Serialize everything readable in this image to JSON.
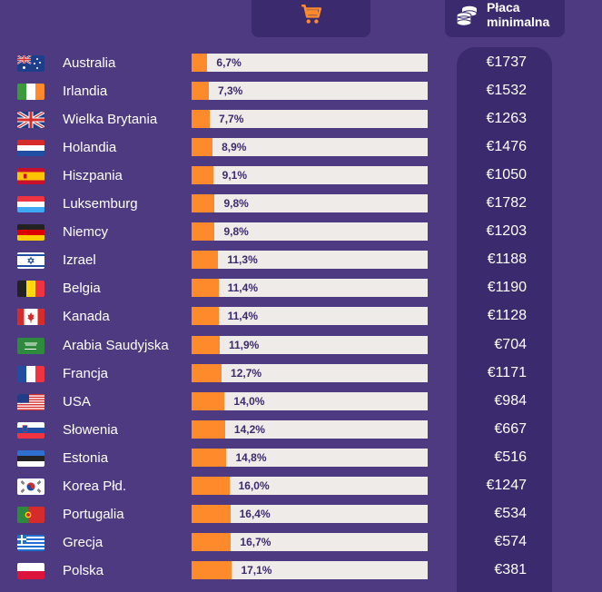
{
  "header": {
    "cart_icon": "shopping-cart-icon",
    "wage_icon": "coins-stack-icon",
    "wage_title_line1": "Płaca",
    "wage_title_line2": "minimalna"
  },
  "colors": {
    "background": "#4e3a80",
    "panel": "#3b2a6e",
    "bar_fill": "#ff8a2b",
    "bar_track": "#efebe8"
  },
  "chart_data": {
    "type": "bar",
    "orientation": "horizontal",
    "xlim": [
      0,
      100
    ],
    "categories": [
      "Australia",
      "Irlandia",
      "Wielka Brytania",
      "Holandia",
      "Hiszpania",
      "Luksemburg",
      "Niemcy",
      "Izrael",
      "Belgia",
      "Kanada",
      "Arabia Saudyjska",
      "Francja",
      "USA",
      "Słowenia",
      "Estonia",
      "Korea Płd.",
      "Portugalia",
      "Grecja",
      "Polska"
    ],
    "values": [
      6.7,
      7.3,
      7.7,
      8.9,
      9.1,
      9.8,
      9.8,
      11.3,
      11.4,
      11.4,
      11.9,
      12.7,
      14.0,
      14.2,
      14.8,
      16.0,
      16.4,
      16.7,
      17.1
    ],
    "value_labels": [
      "6,7%",
      "7,3%",
      "7,7%",
      "8,9%",
      "9,1%",
      "9,8%",
      "9,8%",
      "11,3%",
      "11,4%",
      "11,4%",
      "11,9%",
      "12,7%",
      "14,0%",
      "14,2%",
      "14,8%",
      "16,0%",
      "16,4%",
      "16,7%",
      "17,1%"
    ],
    "minimum_wage_labels": [
      "€1737",
      "€1532",
      "€1263",
      "€1476",
      "€1050",
      "€1782",
      "€1203",
      "€1188",
      "€1190",
      "€1128",
      "€704",
      "€1171",
      "€984",
      "€667",
      "€516",
      "€1247",
      "€534",
      "€574",
      "€381"
    ],
    "minimum_wage_eur": [
      1737,
      1532,
      1263,
      1476,
      1050,
      1782,
      1203,
      1188,
      1190,
      1128,
      704,
      1171,
      984,
      667,
      516,
      1247,
      534,
      574,
      381
    ],
    "flags": [
      "flag-australia-icon",
      "flag-ireland-icon",
      "flag-uk-icon",
      "flag-netherlands-icon",
      "flag-spain-icon",
      "flag-luxembourg-icon",
      "flag-germany-icon",
      "flag-israel-icon",
      "flag-belgium-icon",
      "flag-canada-icon",
      "flag-saudi-arabia-icon",
      "flag-france-icon",
      "flag-usa-icon",
      "flag-slovenia-icon",
      "flag-estonia-icon",
      "flag-south-korea-icon",
      "flag-portugal-icon",
      "flag-greece-icon",
      "flag-poland-icon"
    ]
  }
}
